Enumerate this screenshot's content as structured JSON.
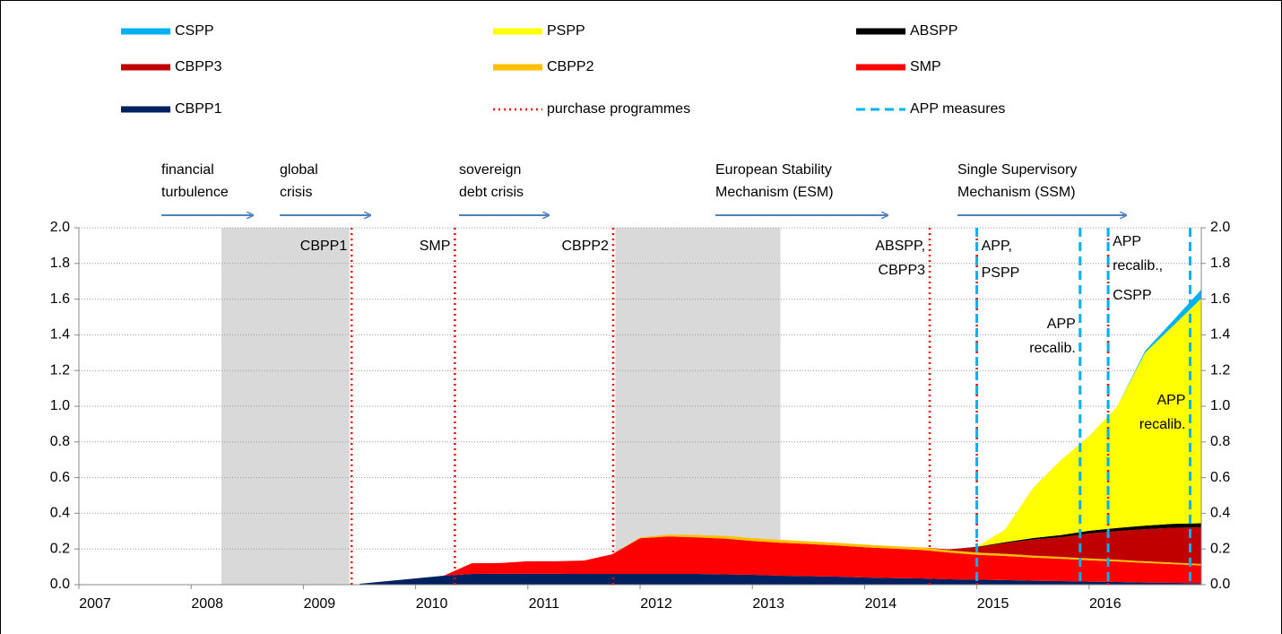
{
  "chart_data": {
    "type": "stacked_area",
    "x": [
      2009.5,
      2009.75,
      2010,
      2010.25,
      2010.5,
      2010.75,
      2011,
      2011.25,
      2011.5,
      2011.75,
      2012,
      2012.25,
      2012.5,
      2012.75,
      2013,
      2013.25,
      2013.5,
      2013.75,
      2014,
      2014.25,
      2014.5,
      2014.75,
      2015,
      2015.25,
      2015.5,
      2015.75,
      2016,
      2016.25,
      2016.5,
      2016.75,
      2017
    ],
    "series": [
      {
        "name": "CSPP",
        "color": "#00b0f0",
        "values": [
          0,
          0,
          0,
          0,
          0,
          0,
          0,
          0,
          0,
          0,
          0,
          0,
          0,
          0,
          0,
          0,
          0,
          0,
          0,
          0,
          0,
          0,
          0,
          0,
          0,
          0,
          0,
          0,
          0.01,
          0.03,
          0.05
        ]
      },
      {
        "name": "PSPP",
        "color": "#ffff00",
        "values": [
          0,
          0,
          0,
          0,
          0,
          0,
          0,
          0,
          0,
          0,
          0,
          0,
          0,
          0,
          0,
          0,
          0,
          0,
          0,
          0,
          0,
          0,
          0,
          0.07,
          0.28,
          0.42,
          0.53,
          0.68,
          0.97,
          1.11,
          1.26
        ]
      },
      {
        "name": "ABSPP",
        "color": "#000000",
        "values": [
          0,
          0,
          0,
          0,
          0,
          0,
          0,
          0,
          0,
          0,
          0,
          0,
          0,
          0,
          0,
          0,
          0,
          0,
          0,
          0,
          0,
          0,
          0.002,
          0.005,
          0.008,
          0.012,
          0.015,
          0.018,
          0.02,
          0.022,
          0.023
        ]
      },
      {
        "name": "CBPP3",
        "color": "#c00000",
        "values": [
          0,
          0,
          0,
          0,
          0,
          0,
          0,
          0,
          0,
          0,
          0,
          0,
          0,
          0,
          0,
          0,
          0,
          0,
          0,
          0,
          0,
          0.005,
          0.03,
          0.06,
          0.09,
          0.11,
          0.14,
          0.16,
          0.18,
          0.195,
          0.205
        ]
      },
      {
        "name": "CBPP2",
        "color": "#ffc000",
        "values": [
          0,
          0,
          0,
          0,
          0,
          0,
          0,
          0,
          0,
          0,
          0.005,
          0.01,
          0.014,
          0.016,
          0.016,
          0.016,
          0.015,
          0.015,
          0.015,
          0.014,
          0.014,
          0.013,
          0.012,
          0.012,
          0.011,
          0.011,
          0.01,
          0.01,
          0.009,
          0.009,
          0.008
        ]
      },
      {
        "name": "SMP",
        "color": "#ff0000",
        "values": [
          0,
          0,
          0,
          0,
          0.06,
          0.06,
          0.07,
          0.07,
          0.075,
          0.11,
          0.2,
          0.21,
          0.205,
          0.2,
          0.19,
          0.185,
          0.18,
          0.175,
          0.17,
          0.165,
          0.16,
          0.15,
          0.14,
          0.135,
          0.13,
          0.125,
          0.12,
          0.115,
          0.11,
          0.105,
          0.1
        ]
      },
      {
        "name": "CBPP1",
        "color": "#002060",
        "values": [
          0.005,
          0.02,
          0.035,
          0.05,
          0.06,
          0.061,
          0.061,
          0.061,
          0.06,
          0.06,
          0.06,
          0.06,
          0.06,
          0.058,
          0.055,
          0.05,
          0.048,
          0.045,
          0.04,
          0.037,
          0.035,
          0.03,
          0.028,
          0.026,
          0.022,
          0.02,
          0.017,
          0.015,
          0.012,
          0.01,
          0.008
        ]
      }
    ],
    "purchase_programmes": {
      "name": "purchase programmes",
      "color": "#ff0000",
      "events": [
        {
          "x": 2009.43,
          "label": [
            "CBPP1"
          ]
        },
        {
          "x": 2010.35,
          "label": [
            "SMP"
          ]
        },
        {
          "x": 2011.76,
          "label": [
            "CBPP2"
          ]
        },
        {
          "x": 2014.58,
          "label": [
            "ABSPP,",
            "CBPP3"
          ]
        },
        {
          "x": 2015.0,
          "label": [
            "PSPP"
          ]
        },
        {
          "x": 2016.17,
          "label": [
            "CSPP"
          ]
        }
      ]
    },
    "app_measures": {
      "name": "APP measures",
      "color": "#00b0f0",
      "events": [
        {
          "x": 2015.0,
          "label": [
            "APP,"
          ]
        },
        {
          "x": 2015.92,
          "label": [
            "APP",
            "recalib."
          ]
        },
        {
          "x": 2016.17,
          "label": [
            "APP",
            "recalib.,"
          ]
        },
        {
          "x": 2016.9,
          "label": [
            "APP",
            "recalib."
          ],
          "label_color": "#000000"
        }
      ]
    },
    "annotations": [
      [
        "financial",
        "turbulence"
      ],
      [
        "global",
        "crisis"
      ],
      [
        "sovereign",
        "debt crisis"
      ],
      [
        "European Stability",
        "Mechanism (ESM)"
      ],
      [
        "Single Supervisory",
        "Mechanism (SSM)"
      ]
    ],
    "shaded_periods": [
      [
        2008.27,
        2009.41
      ],
      [
        2011.78,
        2013.25
      ]
    ],
    "shade_color": "#d9d9d9",
    "xlim": [
      2007,
      2017
    ],
    "xticks": [
      2007,
      2008,
      2009,
      2010,
      2011,
      2012,
      2013,
      2014,
      2015,
      2016
    ],
    "ylim": [
      0,
      2
    ],
    "yticks": [
      {
        "value": 0,
        "label": "0.0"
      },
      0.2,
      0.4,
      0.6,
      0.8,
      {
        "value": 1,
        "label": "1.0"
      },
      1.2,
      1.4,
      1.6,
      1.8,
      {
        "value": 2,
        "label": "2.0"
      }
    ],
    "y2lim": [
      0,
      2
    ],
    "y2ticks": [
      {
        "value": 0,
        "label": "0.0"
      },
      0.2,
      0.4,
      0.6,
      0.8,
      {
        "value": 1,
        "label": "1.0"
      },
      1.2,
      1.4,
      1.6,
      1.8,
      {
        "value": 2,
        "label": "2.0"
      }
    ],
    "grid": true
  }
}
